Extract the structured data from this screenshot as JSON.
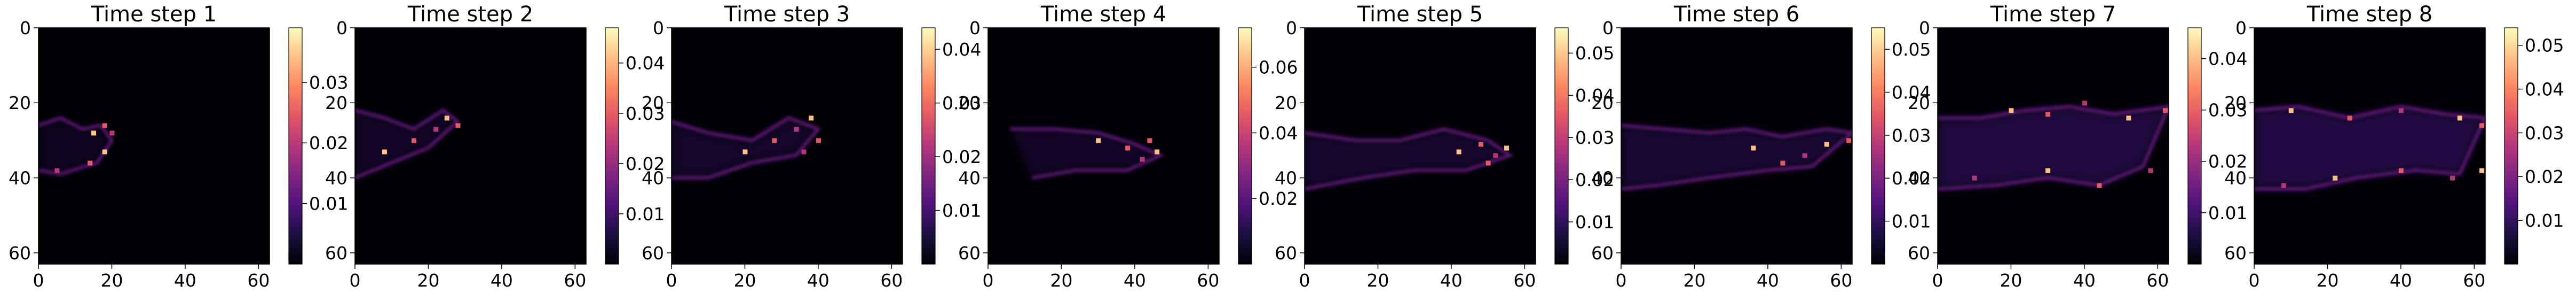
{
  "chart_data": [
    {
      "type": "heatmap",
      "title": "Time step 1",
      "xticks": [
        0,
        20,
        40,
        60
      ],
      "yticks": [
        0,
        20,
        40,
        60
      ],
      "xlim": [
        0,
        63
      ],
      "ylim": [
        63,
        0
      ],
      "colormap": "magma",
      "colorbar": {
        "min": 0,
        "max": 0.039,
        "ticks": [
          0.01,
          0.02,
          0.03
        ],
        "tick_labels": [
          "0.01",
          "0.02",
          "0.03"
        ]
      }
    },
    {
      "type": "heatmap",
      "title": "Time step 2",
      "xticks": [
        0,
        20,
        40,
        60
      ],
      "yticks": [
        0,
        20,
        40,
        60
      ],
      "xlim": [
        0,
        63
      ],
      "ylim": [
        63,
        0
      ],
      "colormap": "magma",
      "colorbar": {
        "min": 0,
        "max": 0.047,
        "ticks": [
          0.01,
          0.02,
          0.03,
          0.04
        ],
        "tick_labels": [
          "0.01",
          "0.02",
          "0.03",
          "0.04"
        ]
      }
    },
    {
      "type": "heatmap",
      "title": "Time step 3",
      "xticks": [
        0,
        20,
        40,
        60
      ],
      "yticks": [
        0,
        20,
        40,
        60
      ],
      "xlim": [
        0,
        63
      ],
      "ylim": [
        63,
        0
      ],
      "colormap": "magma",
      "colorbar": {
        "min": 0,
        "max": 0.044,
        "ticks": [
          0.01,
          0.02,
          0.03,
          0.04
        ],
        "tick_labels": [
          "0.01",
          "0.02",
          "0.03",
          "0.04"
        ]
      }
    },
    {
      "type": "heatmap",
      "title": "Time step 4",
      "xticks": [
        0,
        20,
        40,
        60
      ],
      "yticks": [
        0,
        20,
        40,
        60
      ],
      "xlim": [
        0,
        63
      ],
      "ylim": [
        63,
        0
      ],
      "colormap": "magma",
      "colorbar": {
        "min": 0,
        "max": 0.072,
        "ticks": [
          0.02,
          0.04,
          0.06
        ],
        "tick_labels": [
          "0.02",
          "0.04",
          "0.06"
        ]
      }
    },
    {
      "type": "heatmap",
      "title": "Time step 5",
      "xticks": [
        0,
        20,
        40,
        60
      ],
      "yticks": [
        0,
        20,
        40,
        60
      ],
      "xlim": [
        0,
        63
      ],
      "ylim": [
        63,
        0
      ],
      "colormap": "magma",
      "colorbar": {
        "min": 0,
        "max": 0.056,
        "ticks": [
          0.01,
          0.02,
          0.03,
          0.04,
          0.05
        ],
        "tick_labels": [
          "0.01",
          "0.02",
          "0.03",
          "0.04",
          "0.05"
        ]
      }
    },
    {
      "type": "heatmap",
      "title": "Time step 6",
      "xticks": [
        0,
        20,
        40,
        60
      ],
      "yticks": [
        0,
        20,
        40,
        60
      ],
      "xlim": [
        0,
        63
      ],
      "ylim": [
        63,
        0
      ],
      "colormap": "magma",
      "colorbar": {
        "min": 0,
        "max": 0.055,
        "ticks": [
          0.01,
          0.02,
          0.03,
          0.04,
          0.05
        ],
        "tick_labels": [
          "0.01",
          "0.02",
          "0.03",
          "0.04",
          "0.05"
        ]
      }
    },
    {
      "type": "heatmap",
      "title": "Time step 7",
      "xticks": [
        0,
        20,
        40,
        60
      ],
      "yticks": [
        0,
        20,
        40,
        60
      ],
      "xlim": [
        0,
        63
      ],
      "ylim": [
        63,
        0
      ],
      "colormap": "magma",
      "colorbar": {
        "min": 0,
        "max": 0.046,
        "ticks": [
          0.01,
          0.02,
          0.03,
          0.04
        ],
        "tick_labels": [
          "0.01",
          "0.02",
          "0.03",
          "0.04"
        ]
      }
    },
    {
      "type": "heatmap",
      "title": "Time step 8",
      "xticks": [
        0,
        20,
        40,
        60
      ],
      "yticks": [
        0,
        20,
        40,
        60
      ],
      "xlim": [
        0,
        63
      ],
      "ylim": [
        63,
        0
      ],
      "colormap": "magma",
      "colorbar": {
        "min": 0,
        "max": 0.054,
        "ticks": [
          0.01,
          0.02,
          0.03,
          0.04,
          0.05
        ],
        "tick_labels": [
          "0.01",
          "0.02",
          "0.03",
          "0.04",
          "0.05"
        ]
      }
    }
  ]
}
